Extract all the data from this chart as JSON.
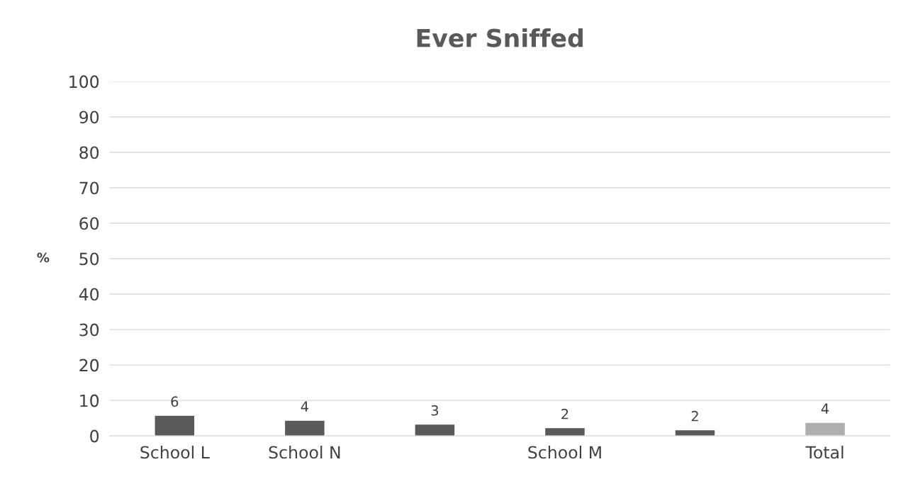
{
  "chart_data": {
    "type": "bar",
    "title": "Ever Sniffed",
    "ylabel": "%",
    "categories": [
      "School L",
      "School N",
      null,
      "School M",
      null,
      "Total"
    ],
    "values": [
      5.8,
      4.4,
      3.3,
      2.3,
      1.7,
      3.8
    ],
    "value_labels": [
      "6",
      "4",
      "3",
      "2",
      "2",
      "4"
    ],
    "colors": [
      "#595959",
      "#595959",
      "#595959",
      "#595959",
      "#595959",
      "#afafaf"
    ],
    "ylim": [
      0,
      100
    ],
    "yticks": [
      0,
      10,
      20,
      30,
      40,
      50,
      60,
      70,
      80,
      90,
      100
    ],
    "grid": "y"
  }
}
